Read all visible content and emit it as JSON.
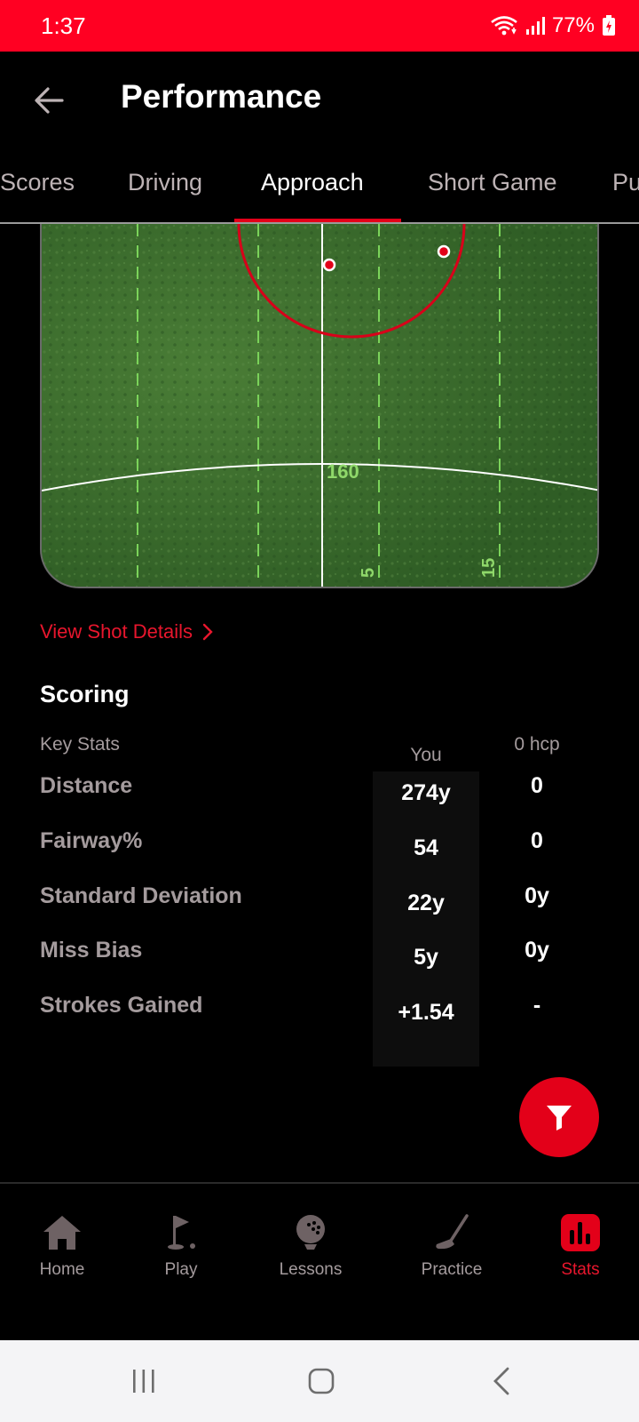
{
  "status_bar": {
    "time": "1:37",
    "battery": "77%",
    "icons": [
      "wifi-icon",
      "signal-icon",
      "battery-charging-icon"
    ]
  },
  "header": {
    "title": "Performance",
    "back_icon": "arrow-left-icon"
  },
  "tabs": [
    {
      "label": "Scores",
      "active": false
    },
    {
      "label": "Driving",
      "active": false
    },
    {
      "label": "Approach",
      "active": true
    },
    {
      "label": "Short Game",
      "active": false
    },
    {
      "label": "Pu",
      "active": false
    }
  ],
  "shot_map": {
    "distance_label": "160",
    "lane_labels": [
      "5",
      "15"
    ]
  },
  "link": {
    "label": "View Shot Details"
  },
  "scoring": {
    "title": "Scoring",
    "header": {
      "key": "Key Stats",
      "you": "You",
      "hcp": "0 hcp"
    },
    "rows": [
      {
        "label": "Distance",
        "you": "274y",
        "hcp": "0"
      },
      {
        "label": "Fairway%",
        "you": "54",
        "hcp": "0"
      },
      {
        "label": "Standard Deviation",
        "you": "22y",
        "hcp": "0y"
      },
      {
        "label": "Miss Bias",
        "you": "5y",
        "hcp": "0y"
      },
      {
        "label": "Strokes Gained",
        "you": "+1.54",
        "hcp": "-"
      }
    ]
  },
  "fab": {
    "icon": "filter-icon"
  },
  "bottom_nav": [
    {
      "label": "Home",
      "icon": "home-icon",
      "active": false
    },
    {
      "label": "Play",
      "icon": "golf-flag-icon",
      "active": false
    },
    {
      "label": "Lessons",
      "icon": "golf-ball-icon",
      "active": false
    },
    {
      "label": "Practice",
      "icon": "golf-club-icon",
      "active": false
    },
    {
      "label": "Stats",
      "icon": "stats-chart-icon",
      "active": true
    }
  ],
  "colors": {
    "accent": "#e30019",
    "status_bar": "#ff0022",
    "muted_text": "#a49b9d",
    "fairway": "#3c6e2f"
  }
}
